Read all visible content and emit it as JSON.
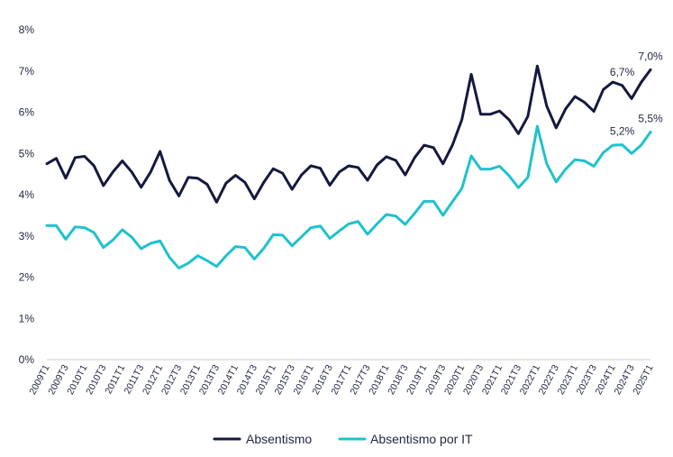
{
  "chart_data": {
    "type": "line",
    "title": "",
    "xlabel": "",
    "ylabel": "",
    "ylim": [
      0,
      8
    ],
    "y_ticks": [
      0,
      1,
      2,
      3,
      4,
      5,
      6,
      7,
      8
    ],
    "y_tick_labels": [
      "0%",
      "1%",
      "2%",
      "3%",
      "4%",
      "5%",
      "6%",
      "7%",
      "8%"
    ],
    "grid": false,
    "legend_position": "bottom",
    "x": [
      "2009T1",
      "2009T2",
      "2009T3",
      "2009T4",
      "2010T1",
      "2010T2",
      "2010T3",
      "2010T4",
      "2011T1",
      "2011T2",
      "2011T3",
      "2011T4",
      "2012T1",
      "2012T2",
      "2012T3",
      "2012T4",
      "2013T1",
      "2013T2",
      "2013T3",
      "2013T4",
      "2014T1",
      "2014T2",
      "2014T3",
      "2014T4",
      "2015T1",
      "2015T2",
      "2015T3",
      "2015T4",
      "2016T1",
      "2016T2",
      "2016T3",
      "2016T4",
      "2017T1",
      "2017T2",
      "2017T3",
      "2017T4",
      "2018T1",
      "2018T2",
      "2018T3",
      "2018T4",
      "2019T1",
      "2019T2",
      "2019T3",
      "2019T4",
      "2020T1",
      "2020T2",
      "2020T3",
      "2020T4",
      "2021T1",
      "2021T2",
      "2021T3",
      "2021T4",
      "2022T1",
      "2022T2",
      "2022T3",
      "2022T4",
      "2023T1",
      "2023T2",
      "2023T3",
      "2023T4",
      "2024T1",
      "2024T2",
      "2024T3",
      "2024T4",
      "2025T1"
    ],
    "x_tick_labels": [
      "2009T1",
      "2009T3",
      "2010T1",
      "2010T3",
      "2011T1",
      "2011T3",
      "2012T1",
      "2012T3",
      "2013T1",
      "2013T3",
      "2014T1",
      "2014T3",
      "2015T1",
      "2015T3",
      "2016T1",
      "2016T3",
      "2017T1",
      "2017T3",
      "2018T1",
      "2018T3",
      "2019T1",
      "2019T3",
      "2020T1",
      "2020T3",
      "2021T1",
      "2021T3",
      "2022T1",
      "2022T3",
      "2023T1",
      "2023T3",
      "2024T1",
      "2024T3",
      "2025T1"
    ],
    "series": [
      {
        "name": "Absentismo",
        "color": "#15193f",
        "values": [
          4.75,
          4.88,
          4.4,
          4.9,
          4.93,
          4.7,
          4.22,
          4.55,
          4.82,
          4.55,
          4.18,
          4.55,
          5.05,
          4.35,
          3.97,
          4.42,
          4.4,
          4.25,
          3.82,
          4.28,
          4.47,
          4.3,
          3.9,
          4.3,
          4.63,
          4.52,
          4.13,
          4.48,
          4.7,
          4.64,
          4.23,
          4.55,
          4.7,
          4.66,
          4.35,
          4.72,
          4.92,
          4.83,
          4.48,
          4.9,
          5.2,
          5.14,
          4.75,
          5.2,
          5.82,
          6.92,
          5.95,
          5.95,
          6.03,
          5.82,
          5.48,
          5.9,
          7.12,
          6.15,
          5.62,
          6.08,
          6.38,
          6.24,
          6.02,
          6.55,
          6.73,
          6.65,
          6.33,
          6.72,
          7.03
        ]
      },
      {
        "name": "Absentismo por IT",
        "color": "#1ec2cd",
        "values": [
          3.25,
          3.25,
          2.92,
          3.22,
          3.2,
          3.08,
          2.72,
          2.9,
          3.15,
          2.97,
          2.69,
          2.82,
          2.88,
          2.48,
          2.22,
          2.34,
          2.52,
          2.4,
          2.26,
          2.52,
          2.74,
          2.72,
          2.44,
          2.7,
          3.03,
          3.02,
          2.76,
          2.98,
          3.2,
          3.24,
          2.94,
          3.12,
          3.29,
          3.35,
          3.04,
          3.29,
          3.52,
          3.48,
          3.28,
          3.55,
          3.84,
          3.84,
          3.5,
          3.83,
          4.15,
          4.94,
          4.62,
          4.62,
          4.69,
          4.46,
          4.17,
          4.42,
          5.66,
          4.75,
          4.31,
          4.62,
          4.85,
          4.82,
          4.69,
          5.02,
          5.2,
          5.21,
          5.0,
          5.2,
          5.52
        ]
      }
    ],
    "annotations": [
      {
        "series": 0,
        "index": 61,
        "text": "6,7%"
      },
      {
        "series": 0,
        "index": 64,
        "text": "7,0%"
      },
      {
        "series": 1,
        "index": 61,
        "text": "5,2%"
      },
      {
        "series": 1,
        "index": 64,
        "text": "5,5%"
      }
    ]
  }
}
